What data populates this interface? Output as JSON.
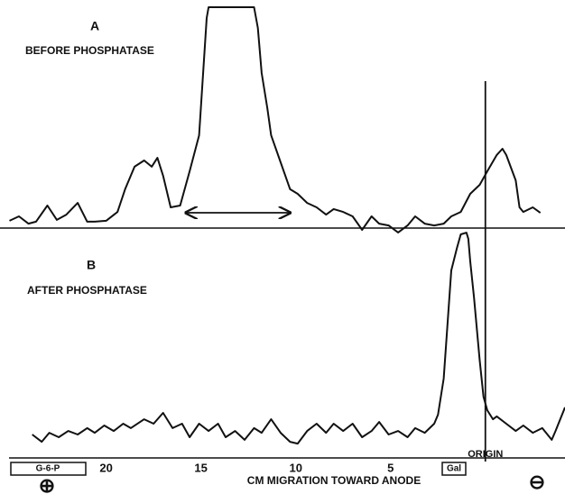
{
  "chart_data": [
    {
      "type": "line",
      "title": "A",
      "subtitle": "BEFORE PHOSPHATASE",
      "x": [
        25.1,
        24.6,
        24.1,
        23.7,
        23.1,
        22.6,
        22.1,
        21.5,
        21.0,
        20.6,
        20.0,
        19.4,
        19.0,
        18.5,
        18.0,
        17.6,
        17.3,
        17.0,
        16.6,
        16.1,
        15.6,
        15.1,
        14.7,
        14.6,
        12.2,
        12.0,
        11.8,
        11.5,
        11.3,
        10.8,
        10.3,
        9.9,
        9.4,
        8.9,
        8.4,
        8.0,
        7.5,
        7.0,
        6.5,
        6.0,
        5.6,
        5.1,
        4.6,
        4.1,
        3.7,
        3.2,
        2.7,
        2.2,
        1.8,
        1.3,
        0.8,
        0.3,
        -0.1,
        -0.6,
        -0.9,
        -1.1,
        -1.6,
        -1.8,
        -2.0,
        -2.5,
        -2.9
      ],
      "series": [
        {
          "color": "#111111",
          "values": [
            3.3,
            5.3,
            2.0,
            2.9,
            10.2,
            3.7,
            6.1,
            11.4,
            2.9,
            2.9,
            3.3,
            7.3,
            17.6,
            27.8,
            30.6,
            27.8,
            31.8,
            23.7,
            9.4,
            10.2,
            25.7,
            42.0,
            95.1,
            100,
            100,
            90.6,
            70.2,
            54.3,
            42.0,
            29.8,
            17.6,
            15.5,
            11.4,
            9.4,
            6.1,
            8.6,
            7.3,
            5.3,
            -0.8,
            5.3,
            2.0,
            1.2,
            -2.0,
            1.2,
            5.3,
            2.0,
            1.2,
            2.0,
            5.3,
            7.3,
            15.5,
            19.6,
            25.7,
            33.1,
            35.9,
            33.1,
            21.6,
            9.4,
            7.3,
            9.4,
            6.9
          ]
        }
      ],
      "xlim": [
        25.6,
        -4.2
      ],
      "ylim": [
        0,
        100
      ],
      "annotations": [
        {
          "type": "double-arrow",
          "x": [
            15.8,
            10.3
          ]
        }
      ]
    },
    {
      "type": "line",
      "title": "B",
      "subtitle": "AFTER PHOSPHATASE",
      "x": [
        23.9,
        23.4,
        23.0,
        22.5,
        22.0,
        21.5,
        21.0,
        20.6,
        20.1,
        19.6,
        19.1,
        18.7,
        18.0,
        17.5,
        17.0,
        16.5,
        16.0,
        15.6,
        15.1,
        14.6,
        14.1,
        13.7,
        13.2,
        12.7,
        12.2,
        11.8,
        11.3,
        10.8,
        10.3,
        9.9,
        9.4,
        8.9,
        8.4,
        8.0,
        7.5,
        7.0,
        6.5,
        6.0,
        5.6,
        5.1,
        4.6,
        4.1,
        3.7,
        3.2,
        2.7,
        2.5,
        2.2,
        2.0,
        1.8,
        1.5,
        1.3,
        1.0,
        0.9,
        0.8,
        0.6,
        0.3,
        0.1,
        -0.1,
        -0.4,
        -0.6,
        -1.1,
        -1.6,
        -2.0,
        -2.5,
        -3.0,
        -3.5,
        -3.7,
        -4.2
      ],
      "series": [
        {
          "color": "#111111",
          "values": [
            5.3,
            2.0,
            6.1,
            4.1,
            6.9,
            5.3,
            8.2,
            6.1,
            9.4,
            6.9,
            10.2,
            8.2,
            12.2,
            10.2,
            15.1,
            8.2,
            10.2,
            4.1,
            10.2,
            6.9,
            10.2,
            4.1,
            6.9,
            2.9,
            8.2,
            6.1,
            12.2,
            6.1,
            2.0,
            1.2,
            6.9,
            10.2,
            6.1,
            10.2,
            6.9,
            10.2,
            4.1,
            6.9,
            11.0,
            5.3,
            6.9,
            4.1,
            8.2,
            6.1,
            10.2,
            14.3,
            30.6,
            55.1,
            79.6,
            89.8,
            95.9,
            96.7,
            93.9,
            83.7,
            67.3,
            38.8,
            22.4,
            16.3,
            12.2,
            13.5,
            10.2,
            6.9,
            9.4,
            6.1,
            8.2,
            2.9,
            6.9,
            17.6
          ]
        }
      ],
      "xlim": [
        25.6,
        -4.2
      ],
      "ylim": [
        0,
        100
      ],
      "xlabel": "CM MIGRATION TOWARD ANODE",
      "xticks": [
        20,
        15,
        10,
        5
      ],
      "annotations": [
        {
          "text": "ORIGIN",
          "x": 0
        },
        {
          "text": "G-6-P"
        },
        {
          "text": "Gal"
        },
        {
          "text": "⊕"
        },
        {
          "text": "⊖"
        }
      ]
    }
  ]
}
